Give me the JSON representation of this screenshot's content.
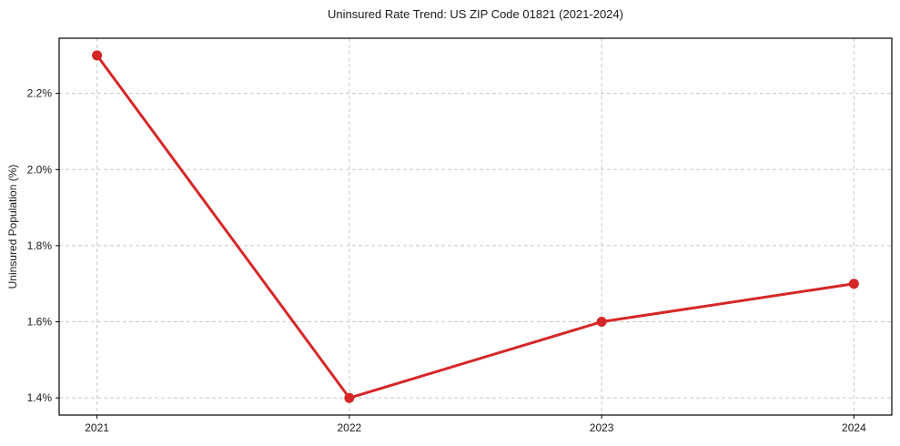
{
  "chart_data": {
    "type": "line",
    "title": "Uninsured Rate Trend: US ZIP Code 01821 (2021-2024)",
    "xlabel": "",
    "ylabel": "Uninsured Population (%)",
    "x": [
      2021,
      2022,
      2023,
      2024
    ],
    "x_tick_labels": [
      "2021",
      "2022",
      "2023",
      "2024"
    ],
    "series": [
      {
        "name": "Uninsured Population (%)",
        "values": [
          2.3,
          1.4,
          1.6,
          1.7
        ]
      }
    ],
    "y_ticks": [
      1.4,
      1.6,
      1.8,
      2.0,
      2.2
    ],
    "y_tick_labels": [
      "1.4%",
      "1.6%",
      "1.8%",
      "2.0%",
      "2.2%"
    ],
    "xlim": [
      2020.85,
      2024.15
    ],
    "ylim": [
      1.355,
      2.345
    ],
    "grid": true,
    "legend": "none",
    "colors": {
      "line": "#d62728",
      "marker": "#d62728",
      "grid": "#c9c9c9",
      "spine": "#000000",
      "text": "#1a1a1a"
    }
  }
}
